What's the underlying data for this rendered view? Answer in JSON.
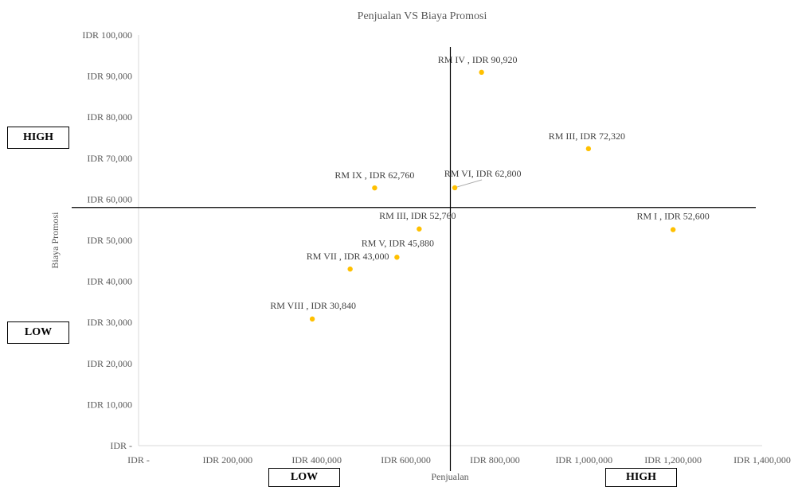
{
  "chart_data": {
    "type": "scatter",
    "title": "Penjualan VS Biaya Promosi",
    "xlabel": "Penjualan",
    "ylabel": "Biaya Promosi",
    "xlim": [
      0,
      1400000
    ],
    "ylim": [
      0,
      100000
    ],
    "x_ticks": [
      0,
      200000,
      400000,
      600000,
      800000,
      1000000,
      1200000,
      1400000
    ],
    "x_tick_labels": [
      "IDR -",
      "IDR 200,000",
      "IDR 400,000",
      "IDR 600,000",
      "IDR 800,000",
      "IDR 1,000,000",
      "IDR 1,200,000",
      "IDR 1,400,000"
    ],
    "y_ticks": [
      0,
      10000,
      20000,
      30000,
      40000,
      50000,
      60000,
      70000,
      80000,
      90000,
      100000
    ],
    "y_tick_labels": [
      "IDR -",
      "IDR 10,000",
      "IDR 20,000",
      "IDR 30,000",
      "IDR 40,000",
      "IDR 50,000",
      "IDR 60,000",
      "IDR 70,000",
      "IDR 80,000",
      "IDR 90,000",
      "IDR 100,000"
    ],
    "grid": false,
    "marker_color": "#FFC000",
    "quadrant_lines": {
      "x": 700000,
      "y": 58000
    },
    "points": [
      {
        "label": "RM IV ,  IDR 90,920",
        "x": 770000,
        "y": 90920
      },
      {
        "label": "RM III,  IDR 72,320",
        "x": 1010000,
        "y": 72320
      },
      {
        "label": "RM IX ,  IDR 62,760",
        "x": 530000,
        "y": 62760
      },
      {
        "label": "RM VI,  IDR 62,800",
        "x": 710000,
        "y": 62800
      },
      {
        "label": "RM III,  IDR 52,760",
        "x": 630000,
        "y": 52760
      },
      {
        "label": "RM I ,  IDR 52,600",
        "x": 1200000,
        "y": 52600
      },
      {
        "label": "RM V,  IDR 45,880",
        "x": 580000,
        "y": 45880
      },
      {
        "label": "RM VII ,  IDR 43,000",
        "x": 475000,
        "y": 43000
      },
      {
        "label": "RM VIII ,  IDR 30,840",
        "x": 390000,
        "y": 30840
      }
    ]
  },
  "quadrant_boxes": {
    "y_high": "HIGH",
    "y_low": "LOW",
    "x_low": "LOW",
    "x_high": "HIGH"
  }
}
